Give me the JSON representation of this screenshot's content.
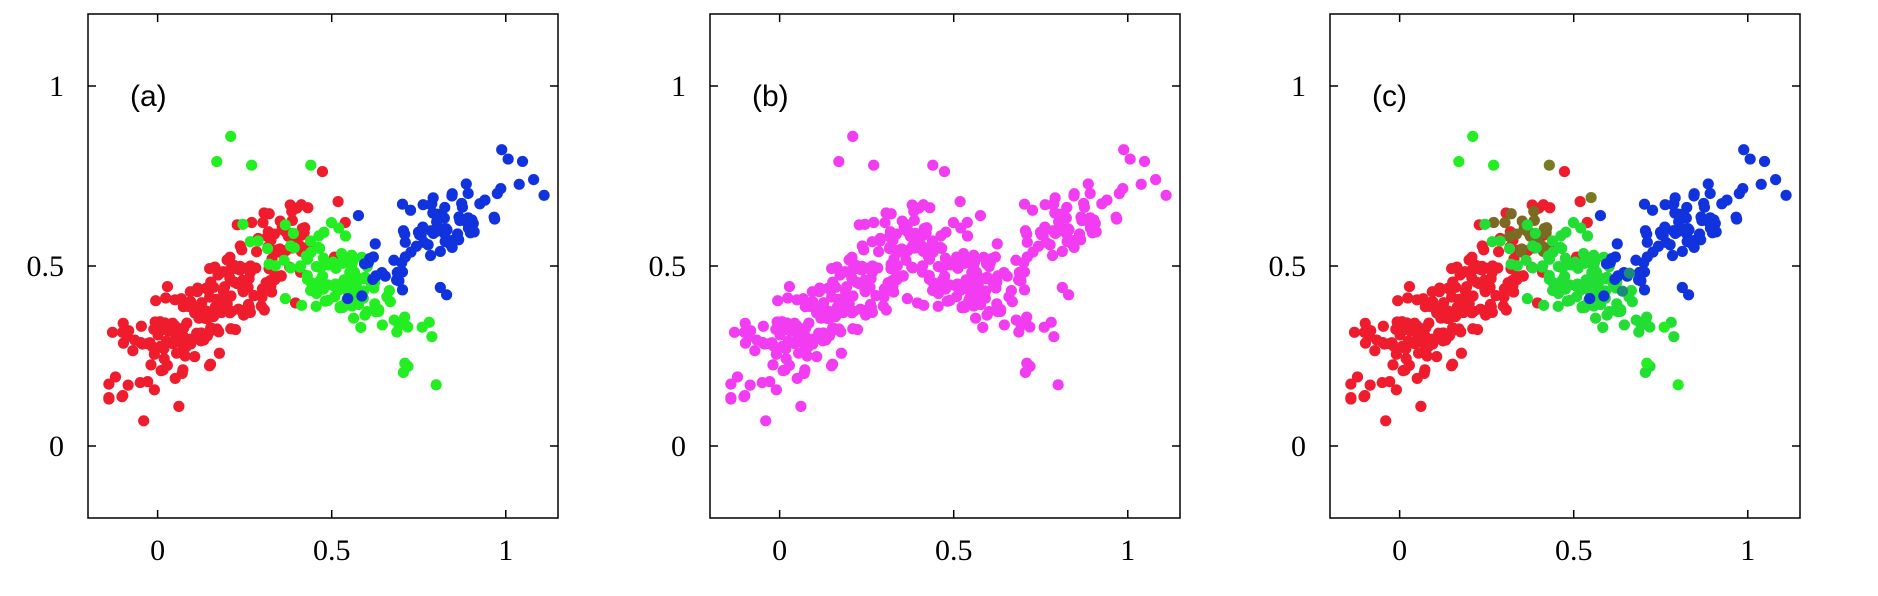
{
  "chart_data": [
    {
      "type": "scatter",
      "label": "(a)",
      "xlim": [
        -0.2,
        1.15
      ],
      "ylim": [
        -0.2,
        1.2
      ],
      "xticks": [
        0,
        0.5,
        1
      ],
      "xtick_labels": [
        "0",
        "0.5",
        "1"
      ],
      "yticks": [
        0,
        0.5,
        1
      ],
      "ytick_labels": [
        "0",
        "0.5",
        "1"
      ],
      "grid": false,
      "legend": "none",
      "coloring": "three classes: red, green, blue",
      "colors": {
        "red": "#ee1c2c",
        "green": "#22ee22",
        "blue": "#1133dd"
      },
      "clusters": [
        {
          "color": "#ee1c2c",
          "cx": 0.15,
          "cy": 0.38,
          "dir": [
            0.78,
            0.62
          ],
          "sa": 0.17,
          "sb": 0.055,
          "n": 190,
          "seed": 11
        },
        {
          "color": "#ee1c2c",
          "cx": 0.36,
          "cy": 0.6,
          "dir": [
            0.7,
            -0.4
          ],
          "sa": 0.05,
          "sb": 0.03,
          "n": 25,
          "seed": 12
        },
        {
          "color": "#22ee22",
          "cx": 0.5,
          "cy": 0.48,
          "dir": [
            0.78,
            -0.62
          ],
          "sa": 0.13,
          "sb": 0.05,
          "n": 120,
          "seed": 13
        },
        {
          "color": "#1133dd",
          "cx": 0.8,
          "cy": 0.6,
          "dir": [
            0.8,
            0.6
          ],
          "sa": 0.13,
          "sb": 0.05,
          "n": 85,
          "seed": 14
        }
      ],
      "extra_points": [
        {
          "x": 0.21,
          "y": 0.86,
          "color": "#22ee22"
        },
        {
          "x": 0.17,
          "y": 0.79,
          "color": "#22ee22"
        },
        {
          "x": 0.27,
          "y": 0.78,
          "color": "#22ee22"
        },
        {
          "x": 0.44,
          "y": 0.78,
          "color": "#22ee22"
        },
        {
          "x": 0.8,
          "y": 0.17,
          "color": "#22ee22"
        },
        {
          "x": 0.71,
          "y": 0.23,
          "color": "#22ee22"
        },
        {
          "x": 0.76,
          "y": 0.33,
          "color": "#22ee22"
        },
        {
          "x": 0.83,
          "y": 0.42,
          "color": "#1133dd"
        },
        {
          "x": 1.08,
          "y": 0.74,
          "color": "#1133dd"
        },
        {
          "x": -0.1,
          "y": 0.14,
          "color": "#ee1c2c"
        },
        {
          "x": -0.04,
          "y": 0.07,
          "color": "#ee1c2c"
        }
      ]
    },
    {
      "type": "scatter",
      "label": "(b)",
      "xlim": [
        -0.2,
        1.15
      ],
      "ylim": [
        -0.2,
        1.2
      ],
      "xticks": [
        0,
        0.5,
        1
      ],
      "xtick_labels": [
        "0",
        "0.5",
        "1"
      ],
      "yticks": [
        0,
        0.5,
        1
      ],
      "ytick_labels": [
        "0",
        "0.5",
        "1"
      ],
      "grid": false,
      "legend": "none",
      "coloring": "single color (magenta)",
      "colors": {
        "point": "#f23cf2"
      },
      "clusters": [
        {
          "color": "#f23cf2",
          "cx": 0.15,
          "cy": 0.38,
          "dir": [
            0.78,
            0.62
          ],
          "sa": 0.17,
          "sb": 0.055,
          "n": 190,
          "seed": 11
        },
        {
          "color": "#f23cf2",
          "cx": 0.36,
          "cy": 0.6,
          "dir": [
            0.7,
            -0.4
          ],
          "sa": 0.05,
          "sb": 0.03,
          "n": 25,
          "seed": 12
        },
        {
          "color": "#f23cf2",
          "cx": 0.5,
          "cy": 0.48,
          "dir": [
            0.78,
            -0.62
          ],
          "sa": 0.13,
          "sb": 0.05,
          "n": 120,
          "seed": 13
        },
        {
          "color": "#f23cf2",
          "cx": 0.8,
          "cy": 0.6,
          "dir": [
            0.8,
            0.6
          ],
          "sa": 0.13,
          "sb": 0.05,
          "n": 85,
          "seed": 14
        }
      ],
      "extra_points": [
        {
          "x": 0.21,
          "y": 0.86,
          "color": "#f23cf2"
        },
        {
          "x": 0.17,
          "y": 0.79,
          "color": "#f23cf2"
        },
        {
          "x": 0.27,
          "y": 0.78,
          "color": "#f23cf2"
        },
        {
          "x": 0.44,
          "y": 0.78,
          "color": "#f23cf2"
        },
        {
          "x": 0.8,
          "y": 0.17,
          "color": "#f23cf2"
        },
        {
          "x": 0.71,
          "y": 0.23,
          "color": "#f23cf2"
        },
        {
          "x": 0.76,
          "y": 0.33,
          "color": "#f23cf2"
        },
        {
          "x": 0.83,
          "y": 0.42,
          "color": "#f23cf2"
        },
        {
          "x": 1.08,
          "y": 0.74,
          "color": "#f23cf2"
        },
        {
          "x": -0.1,
          "y": 0.14,
          "color": "#f23cf2"
        },
        {
          "x": -0.04,
          "y": 0.07,
          "color": "#f23cf2"
        }
      ]
    },
    {
      "type": "scatter",
      "label": "(c)",
      "xlim": [
        -0.2,
        1.15
      ],
      "ylim": [
        -0.2,
        1.2
      ],
      "xticks": [
        0,
        0.5,
        1
      ],
      "xtick_labels": [
        "0",
        "0.5",
        "1"
      ],
      "yticks": [
        0,
        0.5,
        1
      ],
      "ytick_labels": [
        "0",
        "0.5",
        "1"
      ],
      "grid": false,
      "legend": "none",
      "coloring": "soft class membership blended red/green/blue",
      "colors": {
        "red": "#ee1c2c",
        "green": "#22ee22",
        "blue": "#1133dd",
        "red_green_mix": "#7a7a22",
        "green_blue_mix": "#1a8a7a"
      },
      "clusters": [
        {
          "color": "#ee1c2c",
          "cx": 0.15,
          "cy": 0.38,
          "dir": [
            0.78,
            0.62
          ],
          "sa": 0.17,
          "sb": 0.055,
          "n": 190,
          "seed": 11
        },
        {
          "color": "#7a6a22",
          "cx": 0.36,
          "cy": 0.6,
          "dir": [
            0.7,
            -0.4
          ],
          "sa": 0.05,
          "sb": 0.03,
          "n": 25,
          "seed": 12
        },
        {
          "color": "#22dd33",
          "cx": 0.5,
          "cy": 0.48,
          "dir": [
            0.78,
            -0.62
          ],
          "sa": 0.13,
          "sb": 0.05,
          "n": 120,
          "seed": 13
        },
        {
          "color": "#1133dd",
          "cx": 0.8,
          "cy": 0.6,
          "dir": [
            0.8,
            0.6
          ],
          "sa": 0.13,
          "sb": 0.05,
          "n": 85,
          "seed": 14
        }
      ],
      "extra_points": [
        {
          "x": 0.21,
          "y": 0.86,
          "color": "#22ee22"
        },
        {
          "x": 0.17,
          "y": 0.79,
          "color": "#22ee22"
        },
        {
          "x": 0.27,
          "y": 0.78,
          "color": "#22ee22"
        },
        {
          "x": 0.43,
          "y": 0.78,
          "color": "#7a7a22"
        },
        {
          "x": 0.55,
          "y": 0.69,
          "color": "#7a7a22"
        },
        {
          "x": 0.8,
          "y": 0.17,
          "color": "#22ee22"
        },
        {
          "x": 0.71,
          "y": 0.23,
          "color": "#22ee22"
        },
        {
          "x": 0.76,
          "y": 0.33,
          "color": "#22ee22"
        },
        {
          "x": 0.83,
          "y": 0.42,
          "color": "#1133dd"
        },
        {
          "x": 0.66,
          "y": 0.48,
          "color": "#1a8a7a"
        },
        {
          "x": 0.64,
          "y": 0.43,
          "color": "#1a8a7a"
        },
        {
          "x": 1.08,
          "y": 0.74,
          "color": "#1133dd"
        },
        {
          "x": -0.1,
          "y": 0.14,
          "color": "#ee1c2c"
        },
        {
          "x": -0.04,
          "y": 0.07,
          "color": "#ee1c2c"
        }
      ]
    }
  ]
}
